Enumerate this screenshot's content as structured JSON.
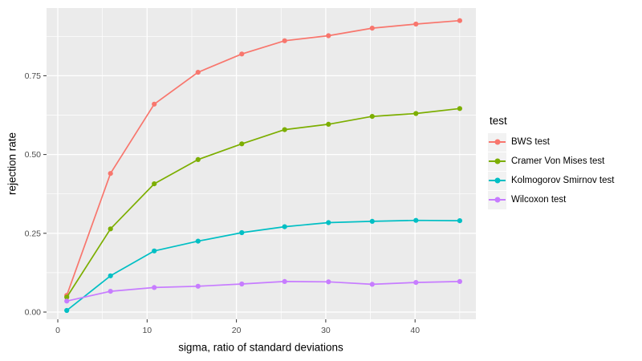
{
  "figure": {
    "background": "#FFFFFF",
    "panel_background": "#EBEBEB",
    "grid_color": "#FFFFFF",
    "tick_text_color": "#4D4D4D",
    "tick_mark_color": "#333333",
    "axis_title_color": "#000000",
    "legend_key_background": "#F2F2F2"
  },
  "chart_data": {
    "type": "line",
    "title": "",
    "xlabel": "sigma, ratio of standard deviations",
    "ylabel": "rejection rate",
    "legend_title": "test",
    "legend_position": "right",
    "grid": true,
    "x": [
      1,
      5.9,
      10.8,
      15.7,
      20.6,
      25.4,
      30.3,
      35.2,
      40.1,
      45
    ],
    "series": [
      {
        "name": "BWS test",
        "color": "#F8766D",
        "values": [
          0.053,
          0.44,
          0.66,
          0.761,
          0.819,
          0.861,
          0.877,
          0.901,
          0.914,
          0.925
        ]
      },
      {
        "name": "Cramer Von Mises test",
        "color": "#7CAE00",
        "values": [
          0.047,
          0.264,
          0.407,
          0.484,
          0.534,
          0.579,
          0.596,
          0.621,
          0.63,
          0.646
        ]
      },
      {
        "name": "Kolmogorov Smirnov test",
        "color": "#00BFC4",
        "values": [
          0.005,
          0.115,
          0.194,
          0.225,
          0.252,
          0.271,
          0.284,
          0.288,
          0.291,
          0.29
        ]
      },
      {
        "name": "Wilcoxon test",
        "color": "#C77CFF",
        "values": [
          0.035,
          0.066,
          0.078,
          0.082,
          0.089,
          0.097,
          0.096,
          0.088,
          0.094,
          0.097
        ]
      }
    ],
    "x_tick_labels": [
      "0",
      "10",
      "20",
      "30",
      "40"
    ],
    "x_tick_values": [
      0,
      10,
      20,
      30,
      40
    ],
    "x_minor_values": [
      5,
      15,
      25,
      35,
      45
    ],
    "y_tick_labels": [
      "0.00",
      "0.25",
      "0.50",
      "0.75"
    ],
    "y_tick_values": [
      0,
      0.25,
      0.5,
      0.75
    ],
    "y_minor_values": [
      0.125,
      0.375,
      0.625,
      0.875
    ],
    "xlim": [
      -1.26,
      46.81
    ],
    "ylim": [
      -0.0229,
      0.9649
    ]
  }
}
